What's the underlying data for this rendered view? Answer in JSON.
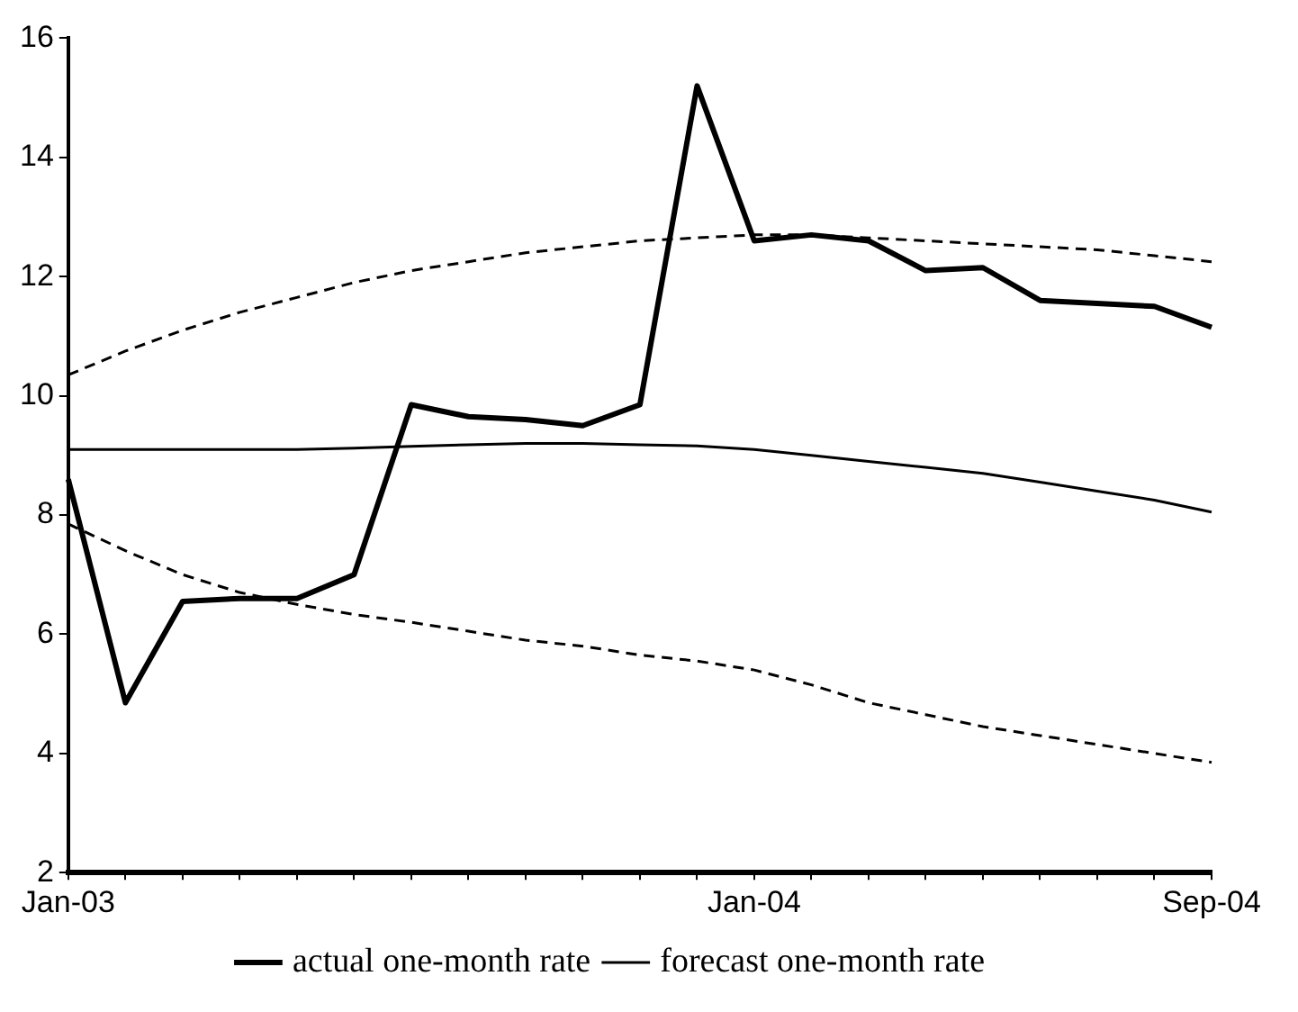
{
  "chart_data": {
    "type": "line",
    "categories": [
      "Jan-03",
      null,
      null,
      null,
      null,
      null,
      null,
      null,
      null,
      null,
      null,
      null,
      "Jan-04",
      null,
      null,
      null,
      null,
      null,
      null,
      null,
      "Sep-04"
    ],
    "series": [
      {
        "name": "actual one-month rate",
        "color": "#000000",
        "values": [
          8.6,
          4.85,
          6.55,
          6.6,
          6.6,
          7.0,
          9.85,
          9.65,
          9.6,
          9.5,
          9.85,
          15.2,
          12.6,
          12.7,
          12.6,
          12.1,
          12.15,
          11.6,
          11.55,
          11.5,
          11.15
        ]
      },
      {
        "name": "forecast one-month rate",
        "color": "#000000",
        "values": [
          9.1,
          9.1,
          9.1,
          9.1,
          9.1,
          9.12,
          9.15,
          9.18,
          9.2,
          9.2,
          9.18,
          9.16,
          9.1,
          9.0,
          8.9,
          8.8,
          8.7,
          8.55,
          8.4,
          8.25,
          8.05
        ]
      },
      {
        "color": "#000000",
        "line_style": "dashed",
        "values": [
          10.35,
          10.75,
          11.1,
          11.4,
          11.65,
          11.9,
          12.1,
          12.25,
          12.4,
          12.5,
          12.6,
          12.65,
          12.7,
          12.7,
          12.65,
          12.6,
          12.55,
          12.5,
          12.45,
          12.35,
          12.25
        ]
      },
      {
        "color": "#000000",
        "line_style": "dashed",
        "values": [
          7.85,
          7.4,
          7.0,
          6.7,
          6.5,
          6.33,
          6.2,
          6.05,
          5.9,
          5.8,
          5.65,
          5.55,
          5.4,
          5.15,
          4.85,
          4.65,
          4.45,
          4.3,
          4.15,
          4.0,
          3.85
        ]
      }
    ],
    "ylim": [
      2,
      16
    ],
    "yticks": [
      2,
      4,
      6,
      8,
      10,
      12,
      14,
      16
    ],
    "grid": false,
    "legend": "bottom",
    "marker": "none",
    "line_style": "solid"
  }
}
